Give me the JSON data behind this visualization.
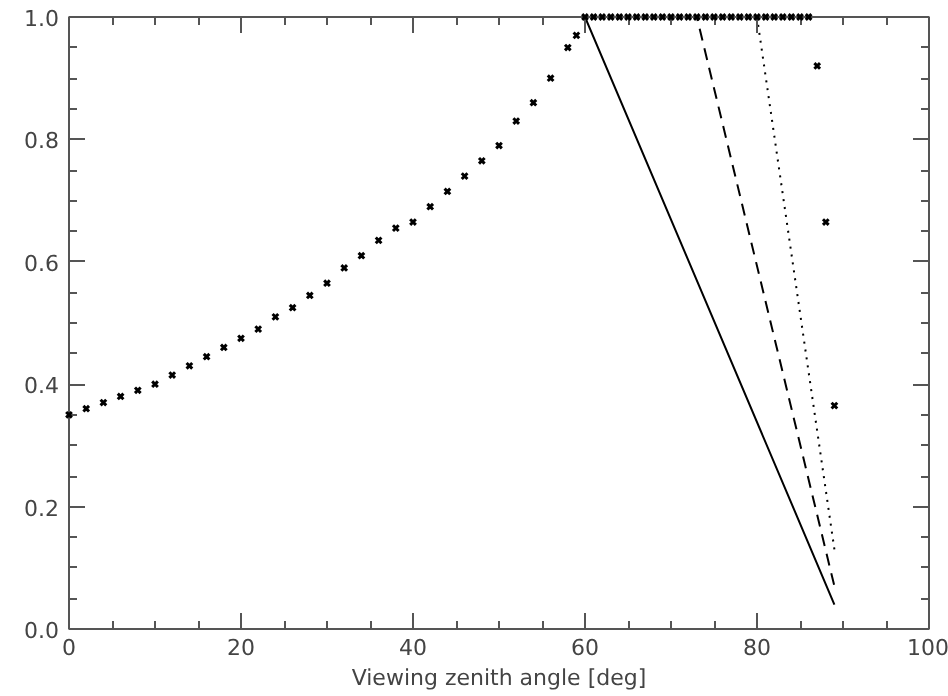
{
  "chart_data": {
    "type": "line",
    "xlabel": "Viewing zenith angle [deg]",
    "xlim": [
      0,
      100
    ],
    "ylim": [
      0,
      1.0
    ],
    "xticks": [
      0,
      20,
      40,
      60,
      80,
      100
    ],
    "yticks": [
      {
        "value": 0,
        "label": "0.0"
      },
      0.2,
      0.4,
      0.6,
      0.8,
      {
        "value": 1,
        "label": "1.0"
      }
    ],
    "grid": false,
    "series": [
      {
        "type": "scatter",
        "marker": "cross",
        "color": "#000000",
        "x": [
          0,
          2,
          4,
          6,
          8,
          10,
          12,
          14,
          16,
          18,
          20,
          22,
          24,
          26,
          28,
          30,
          32,
          34,
          36,
          38,
          40,
          42,
          44,
          46,
          48,
          50,
          52,
          54,
          56,
          58,
          59,
          60,
          61,
          62,
          63,
          64,
          65,
          66,
          67,
          68,
          69,
          70,
          71,
          72,
          73,
          74,
          75,
          76,
          77,
          78,
          79,
          80,
          81,
          82,
          83,
          84,
          85,
          86,
          87,
          88,
          89
        ],
        "values": [
          0.35,
          0.36,
          0.37,
          0.38,
          0.39,
          0.4,
          0.415,
          0.43,
          0.445,
          0.46,
          0.475,
          0.49,
          0.51,
          0.525,
          0.545,
          0.565,
          0.59,
          0.61,
          0.635,
          0.655,
          0.665,
          0.69,
          0.715,
          0.74,
          0.765,
          0.79,
          0.83,
          0.86,
          0.9,
          0.95,
          0.97,
          1.0,
          1.0,
          1.0,
          1.0,
          1.0,
          1.0,
          1.0,
          1.0,
          1.0,
          1.0,
          1.0,
          1.0,
          1.0,
          1.0,
          1.0,
          1.0,
          1.0,
          1.0,
          1.0,
          1.0,
          1.0,
          1.0,
          1.0,
          1.0,
          1.0,
          1.0,
          1.0,
          0.92,
          0.665,
          0.365
        ]
      },
      {
        "line_style": "solid",
        "color": "#000000",
        "x": [
          0,
          60,
          89
        ],
        "values": [
          1.0,
          1.0,
          0.04
        ]
      },
      {
        "line_style": "dashed",
        "color": "#000000",
        "x": [
          0,
          73,
          89
        ],
        "values": [
          1.0,
          1.0,
          0.07
        ]
      },
      {
        "line_style": "dotted",
        "color": "#000000",
        "x": [
          0,
          80,
          89
        ],
        "values": [
          1.0,
          1.0,
          0.13
        ]
      }
    ]
  }
}
